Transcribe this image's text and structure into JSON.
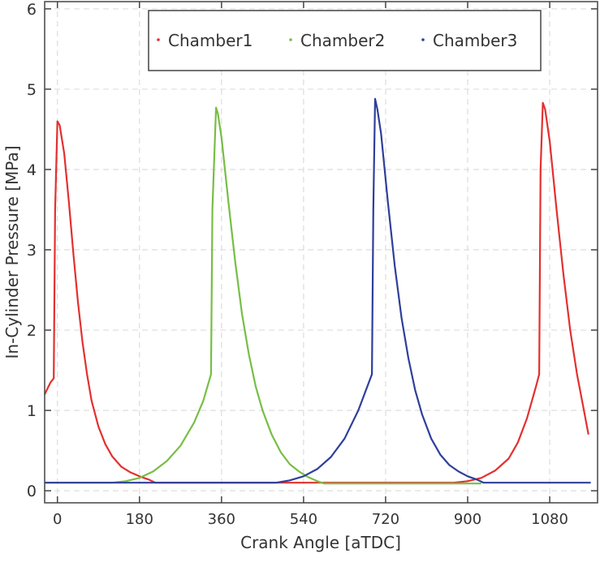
{
  "chart_data": {
    "type": "line",
    "xlabel": "Crank Angle [aTDC]",
    "ylabel": "In-Cylinder Pressure [MPa]",
    "xlim": [
      -28,
      1185
    ],
    "ylim": [
      -0.15,
      6.09
    ],
    "xticks": [
      0,
      180,
      360,
      540,
      720,
      900,
      1080
    ],
    "yticks": [
      0,
      1,
      2,
      3,
      4,
      5,
      6
    ],
    "grid": true,
    "legend_position": "top",
    "series": [
      {
        "name": "Chamber1",
        "color": "#e3302f",
        "x": [
          -28,
          -15,
          -8,
          -5,
          0,
          5,
          15,
          25,
          35,
          45,
          55,
          65,
          75,
          90,
          105,
          120,
          140,
          160,
          180,
          200,
          215,
          500,
          870,
          900,
          930,
          960,
          990,
          1010,
          1030,
          1050,
          1057,
          1060,
          1065,
          1070,
          1080,
          1095,
          1110,
          1125,
          1140,
          1155,
          1165
        ],
        "y": [
          1.2,
          1.35,
          1.4,
          3.5,
          4.6,
          4.55,
          4.2,
          3.6,
          2.95,
          2.35,
          1.85,
          1.45,
          1.12,
          0.8,
          0.58,
          0.43,
          0.3,
          0.23,
          0.18,
          0.14,
          0.1,
          0.1,
          0.1,
          0.12,
          0.16,
          0.25,
          0.4,
          0.6,
          0.9,
          1.3,
          1.45,
          4.0,
          4.83,
          4.75,
          4.35,
          3.5,
          2.7,
          2.0,
          1.45,
          1.0,
          0.7
        ]
      },
      {
        "name": "Chamber2",
        "color": "#77be45",
        "x": [
          -28,
          120,
          150,
          180,
          210,
          240,
          270,
          300,
          320,
          337,
          340,
          348,
          352,
          360,
          375,
          390,
          405,
          420,
          435,
          450,
          470,
          490,
          510,
          530,
          550,
          570,
          585,
          930
        ],
        "y": [
          0.1,
          0.1,
          0.12,
          0.16,
          0.24,
          0.37,
          0.56,
          0.85,
          1.12,
          1.45,
          3.5,
          4.77,
          4.7,
          4.4,
          3.6,
          2.85,
          2.2,
          1.7,
          1.3,
          1.0,
          0.7,
          0.48,
          0.33,
          0.24,
          0.17,
          0.12,
          0.09,
          0.09
        ]
      },
      {
        "name": "Chamber3",
        "color": "#2e3f9b",
        "x": [
          -28,
          480,
          510,
          540,
          570,
          600,
          630,
          660,
          690,
          693,
          697,
          702,
          710,
          725,
          740,
          755,
          770,
          785,
          800,
          820,
          840,
          860,
          880,
          900,
          920,
          935,
          1170
        ],
        "y": [
          0.1,
          0.1,
          0.13,
          0.18,
          0.27,
          0.42,
          0.65,
          1.0,
          1.45,
          3.5,
          4.88,
          4.75,
          4.45,
          3.6,
          2.8,
          2.15,
          1.65,
          1.25,
          0.95,
          0.65,
          0.45,
          0.32,
          0.24,
          0.18,
          0.14,
          0.1,
          0.1
        ]
      }
    ]
  }
}
